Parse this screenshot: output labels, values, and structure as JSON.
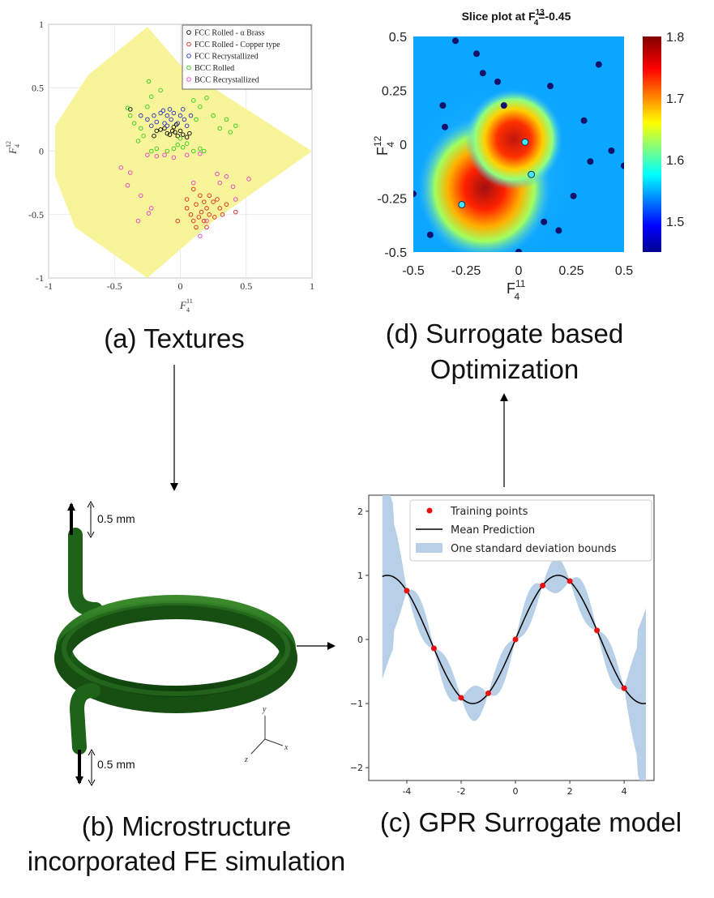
{
  "captions": {
    "a": "(a) Textures",
    "d_line1": "(d) Surrogate based",
    "d_line2": "Optimization",
    "b_line1": "(b) Microstructure",
    "b_line2": "incorporated FE simulation",
    "c": "(c) GPR Surrogate model"
  },
  "colors": {
    "yellow_region": "#f8f49a",
    "fcc_brass": "#000000",
    "fcc_copper": "#e0251b",
    "fcc_recryst": "#2431b8",
    "bcc_rolled": "#2ecc1a",
    "bcc_recryst": "#e23bcf",
    "gpr_band": "#b7d0e8",
    "gpr_point": "#e81010",
    "coil": "#1f6b1a"
  },
  "chart_data": [
    {
      "id": "textures",
      "type": "scatter",
      "xlabel": "F_4^{11}",
      "ylabel": "F_4^{12}",
      "xlim": [
        -1,
        1
      ],
      "ylim": [
        -1,
        1
      ],
      "x_ticks": [
        "-1",
        "-0.5",
        "0",
        "0.5",
        "1"
      ],
      "y_ticks": [
        "1",
        "0.5",
        "0",
        "-0.5",
        "-1"
      ],
      "grid": true,
      "legend_position": "top-right",
      "series": [
        {
          "name": "FCC Rolled - α Brass",
          "color": "#000000",
          "points": [
            [
              -0.18,
              0.16
            ],
            [
              -0.2,
              0.12
            ],
            [
              -0.15,
              0.17
            ],
            [
              -0.12,
              0.18
            ],
            [
              -0.1,
              0.14
            ],
            [
              -0.08,
              0.13
            ],
            [
              -0.06,
              0.16
            ],
            [
              -0.04,
              0.15
            ],
            [
              -0.02,
              0.12
            ],
            [
              0.0,
              0.16
            ],
            [
              0.02,
              0.13
            ],
            [
              0.05,
              0.11
            ],
            [
              0.07,
              0.14
            ],
            [
              -0.05,
              0.19
            ],
            [
              -0.03,
              0.21
            ],
            [
              -0.38,
              0.33
            ]
          ]
        },
        {
          "name": "FCC Rolled - Copper type",
          "color": "#e0251b",
          "points": [
            [
              0.1,
              -0.3
            ],
            [
              0.15,
              -0.35
            ],
            [
              0.18,
              -0.4
            ],
            [
              0.12,
              -0.42
            ],
            [
              0.2,
              -0.45
            ],
            [
              0.16,
              -0.48
            ],
            [
              0.22,
              -0.5
            ],
            [
              0.25,
              -0.4
            ],
            [
              0.28,
              -0.38
            ],
            [
              0.05,
              -0.45
            ],
            [
              0.08,
              -0.5
            ],
            [
              0.14,
              -0.52
            ],
            [
              0.1,
              -0.55
            ],
            [
              0.18,
              -0.55
            ],
            [
              0.2,
              -0.6
            ],
            [
              0.3,
              -0.45
            ],
            [
              0.32,
              -0.5
            ],
            [
              0.05,
              -0.38
            ],
            [
              0.22,
              -0.35
            ],
            [
              0.42,
              -0.48
            ],
            [
              0.26,
              -0.52
            ],
            [
              -0.02,
              -0.55
            ],
            [
              0.12,
              -0.6
            ],
            [
              0.35,
              -0.42
            ]
          ]
        },
        {
          "name": "FCC Recrystallized",
          "color": "#2431b8",
          "points": [
            [
              -0.2,
              0.28
            ],
            [
              -0.15,
              0.3
            ],
            [
              -0.1,
              0.28
            ],
            [
              -0.05,
              0.3
            ],
            [
              0.0,
              0.28
            ],
            [
              -0.18,
              0.23
            ],
            [
              -0.12,
              0.22
            ],
            [
              -0.07,
              0.25
            ],
            [
              -0.02,
              0.22
            ],
            [
              0.03,
              0.25
            ],
            [
              -0.25,
              0.25
            ],
            [
              -0.22,
              0.2
            ],
            [
              0.05,
              0.2
            ],
            [
              -0.13,
              0.32
            ],
            [
              -0.08,
              0.33
            ],
            [
              0.02,
              0.33
            ],
            [
              -0.3,
              0.28
            ],
            [
              0.08,
              0.28
            ],
            [
              -0.1,
              0.2
            ]
          ]
        },
        {
          "name": "BCC Rolled",
          "color": "#2ecc1a",
          "points": [
            [
              -0.4,
              0.34
            ],
            [
              -0.38,
              0.28
            ],
            [
              -0.35,
              0.22
            ],
            [
              -0.3,
              0.18
            ],
            [
              -0.28,
              0.12
            ],
            [
              -0.32,
              0.08
            ],
            [
              -0.25,
              0.35
            ],
            [
              -0.22,
              0.43
            ],
            [
              -0.24,
              0.55
            ],
            [
              -0.15,
              0.48
            ],
            [
              0.1,
              0.4
            ],
            [
              0.15,
              0.35
            ],
            [
              0.2,
              0.42
            ],
            [
              0.25,
              0.28
            ],
            [
              0.3,
              0.18
            ],
            [
              0.35,
              0.25
            ],
            [
              0.38,
              0.15
            ],
            [
              0.42,
              0.2
            ],
            [
              0.0,
              0.1
            ],
            [
              -0.02,
              0.05
            ],
            [
              0.02,
              0.03
            ],
            [
              0.05,
              0.06
            ],
            [
              -0.05,
              0.02
            ],
            [
              0.1,
              0.0
            ],
            [
              -0.1,
              0.0
            ],
            [
              0.15,
              0.02
            ],
            [
              0.18,
              0.0
            ],
            [
              -0.18,
              0.02
            ],
            [
              -0.22,
              0.0
            ],
            [
              0.12,
              0.25
            ]
          ]
        },
        {
          "name": "BCC Recrystallized",
          "color": "#e23bcf",
          "points": [
            [
              -0.45,
              -0.13
            ],
            [
              -0.38,
              -0.17
            ],
            [
              -0.4,
              -0.27
            ],
            [
              -0.3,
              -0.35
            ],
            [
              -0.22,
              -0.45
            ],
            [
              -0.24,
              -0.49
            ],
            [
              -0.32,
              -0.55
            ],
            [
              -0.25,
              -0.03
            ],
            [
              -0.18,
              -0.04
            ],
            [
              -0.12,
              -0.03
            ],
            [
              -0.05,
              -0.05
            ],
            [
              0.05,
              -0.03
            ],
            [
              0.15,
              -0.02
            ],
            [
              0.28,
              -0.18
            ],
            [
              0.3,
              -0.25
            ],
            [
              0.35,
              -0.2
            ],
            [
              0.4,
              -0.28
            ],
            [
              0.52,
              -0.22
            ],
            [
              0.42,
              -0.38
            ],
            [
              0.15,
              -0.67
            ],
            [
              0.2,
              -0.55
            ],
            [
              0.1,
              -0.25
            ]
          ]
        }
      ]
    },
    {
      "id": "slice",
      "type": "heatmap",
      "title": "Slice plot at F_4^{13}=-0.45",
      "xlabel": "F_4^{11}",
      "ylabel": "F_4^{12}",
      "xlim": [
        -0.5,
        0.5
      ],
      "ylim": [
        -0.5,
        0.5
      ],
      "x_ticks": [
        "-0.5",
        "-0.25",
        "0",
        "0.25",
        "0.5"
      ],
      "y_ticks": [
        "0.5",
        "0.25",
        "0",
        "-0.25",
        "-0.5"
      ],
      "colorbar_range": [
        1.45,
        1.8
      ],
      "colorbar_ticks": [
        "1.8",
        "1.7",
        "1.6",
        "1.5"
      ],
      "peaks": [
        [
          -0.15,
          -0.22
        ],
        [
          0.0,
          0.04
        ]
      ],
      "dark_points": [
        [
          -0.3,
          0.48
        ],
        [
          -0.2,
          0.42
        ],
        [
          -0.17,
          0.33
        ],
        [
          -0.1,
          0.29
        ],
        [
          -0.36,
          0.18
        ],
        [
          -0.35,
          0.08
        ],
        [
          -0.07,
          0.18
        ],
        [
          0.15,
          0.27
        ],
        [
          0.38,
          0.37
        ],
        [
          -0.5,
          -0.23
        ],
        [
          -0.42,
          -0.42
        ],
        [
          0.12,
          -0.36
        ],
        [
          0.19,
          -0.4
        ],
        [
          0.26,
          -0.24
        ],
        [
          0.31,
          0.11
        ],
        [
          0.34,
          -0.08
        ],
        [
          0.44,
          -0.03
        ],
        [
          0.5,
          -0.1
        ],
        [
          0.0,
          -0.5
        ]
      ],
      "cyan_points": [
        [
          0.03,
          0.01
        ],
        [
          0.06,
          -0.14
        ],
        [
          -0.27,
          -0.28
        ]
      ]
    },
    {
      "id": "gpr",
      "type": "line",
      "xlim": [
        -5.4,
        5.1
      ],
      "ylim": [
        -2.2,
        2.25
      ],
      "x_ticks": [
        "-4",
        "-2",
        "0",
        "2",
        "4"
      ],
      "y_ticks": [
        "2",
        "1",
        "0",
        "−1",
        "−2"
      ],
      "legend_position": "top-right",
      "series": [
        {
          "name": "Training points",
          "color": "#e81010",
          "x": [
            -4,
            -3,
            -2,
            -1,
            0,
            1,
            2,
            3,
            4
          ],
          "y": [
            0.76,
            -0.14,
            -0.91,
            -0.84,
            0.0,
            0.84,
            0.91,
            0.14,
            -0.76
          ]
        },
        {
          "name": "Mean Prediction",
          "color": "#000000",
          "function": "sin(x)",
          "x_range": [
            -4.9,
            4.8
          ]
        },
        {
          "name": "One standard deviation bounds",
          "color": "#b7d0e8"
        }
      ]
    }
  ],
  "fe": {
    "label_top": "0.5 mm",
    "label_bottom": "0.5 mm",
    "axis_y": "y",
    "axis_x": "x",
    "axis_z": "z"
  }
}
